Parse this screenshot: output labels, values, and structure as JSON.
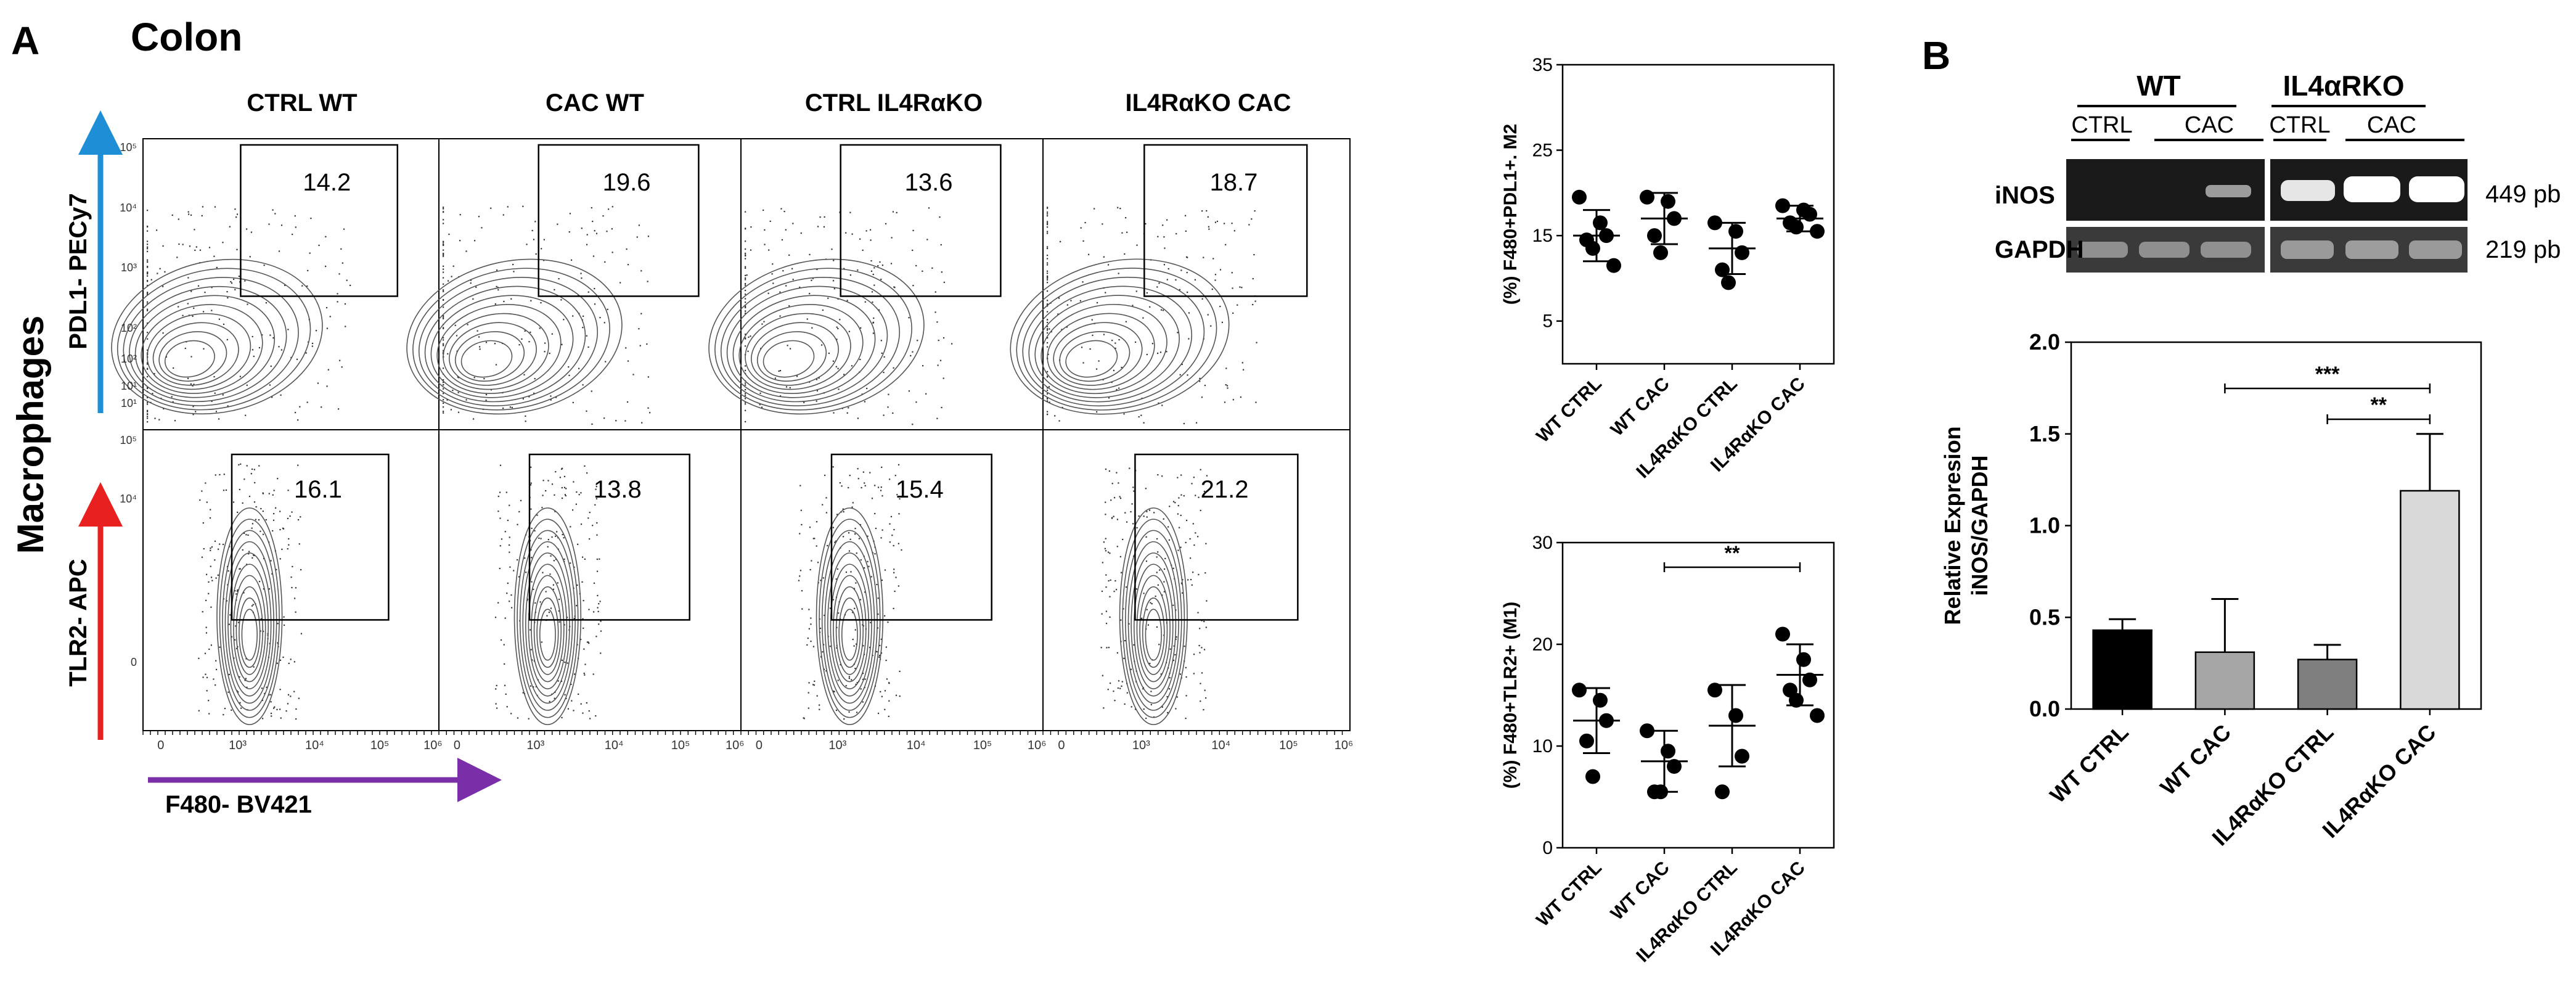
{
  "panel_a": {
    "letter": "A",
    "title": "Colon",
    "row_group_label": "Macrophages",
    "x_axis_label": "F480- BV421",
    "row_labels": [
      "PDL1- PECy7",
      "TLR2- APC"
    ],
    "columns": [
      "CTRL WT",
      "CAC WT",
      "CTRL IL4RαKO",
      "IL4RαKO CAC"
    ],
    "gate_values": [
      [
        "14.2",
        "19.6",
        "13.6",
        "18.7"
      ],
      [
        "16.1",
        "13.8",
        "15.4",
        "21.2"
      ]
    ],
    "x_tick_labels": [
      "0",
      "10³",
      "10⁴",
      "10⁵",
      "10⁶"
    ],
    "y_tick_labels_top": [
      "10⁵",
      "10⁴",
      "10³",
      "10²",
      "10²",
      "10¹",
      "10¹"
    ],
    "y_tick_labels_bottom": [
      "10⁵",
      "10⁴",
      "0"
    ]
  },
  "panel_b": {
    "letter": "B",
    "gel": {
      "group_labels": [
        "WT",
        "IL4αRKO"
      ],
      "sub_labels": [
        "CTRL",
        "CAC",
        "CTRL",
        "CAC"
      ],
      "row_labels": [
        "iNOS",
        "GAPDH"
      ],
      "size_labels": [
        "449 pb",
        "219 pb"
      ]
    }
  },
  "chart_data": [
    {
      "type": "scatter",
      "title": "",
      "ylabel": "(%) F480+PDL1+. M2",
      "ylim": [
        0,
        35
      ],
      "yticks": [
        5,
        15,
        25,
        35
      ],
      "categories": [
        "WT CTRL",
        "WT CAC",
        "IL4RαKO CTRL",
        "IL4RαKO CAC"
      ],
      "points": [
        [
          19.5,
          16.5,
          15,
          14.5,
          13.5,
          11.5
        ],
        [
          19.5,
          19,
          17,
          15,
          13
        ],
        [
          16.5,
          15.5,
          13,
          11,
          9.5
        ],
        [
          18.5,
          18,
          17.5,
          16.5,
          16,
          15.5
        ]
      ],
      "mean": [
        15,
        17,
        13.5,
        17
      ],
      "sd": [
        3,
        3,
        3,
        1.5
      ],
      "significance": []
    },
    {
      "type": "scatter",
      "title": "",
      "ylabel": "(%) F480+TLR2+ (M1)",
      "ylim": [
        0,
        30
      ],
      "yticks": [
        0,
        10,
        20,
        30
      ],
      "categories": [
        "WT CTRL",
        "WT CAC",
        "IL4RαKO CTRL",
        "IL4RαKO CAC"
      ],
      "points": [
        [
          15.5,
          14.5,
          12.5,
          10.5,
          7
        ],
        [
          11.5,
          9.5,
          8,
          5.5,
          5.5
        ],
        [
          15.5,
          13,
          9,
          5.5
        ],
        [
          21,
          18.5,
          16.5,
          15.5,
          14.5,
          13
        ]
      ],
      "mean": [
        12.5,
        8.5,
        12,
        17
      ],
      "sd": [
        3.2,
        3,
        4,
        3
      ],
      "significance": [
        {
          "from": "WT CAC",
          "to": "IL4RαKO CAC",
          "label": "**"
        }
      ]
    },
    {
      "type": "bar",
      "title": "",
      "ylabel": "Relative Expresion iNOS/GAPDH",
      "ylim": [
        0,
        2.0
      ],
      "yticks": [
        "0.0",
        "0.5",
        "1.0",
        "1.5",
        "2.0"
      ],
      "categories": [
        "WT CTRL",
        "WT CAC",
        "IL4RαKO CTRL",
        "IL4RαKO CAC"
      ],
      "values": [
        0.43,
        0.31,
        0.27,
        1.19
      ],
      "errors": [
        0.06,
        0.29,
        0.08,
        0.31
      ],
      "colors": [
        "#000000",
        "#a6a6a6",
        "#7f7f7f",
        "#d9d9d9"
      ],
      "significance": [
        {
          "from": "WT CAC",
          "to": "IL4RαKO CAC",
          "label": "***"
        },
        {
          "from": "IL4RαKO CTRL",
          "to": "IL4RαKO CAC",
          "label": "**"
        }
      ]
    }
  ]
}
